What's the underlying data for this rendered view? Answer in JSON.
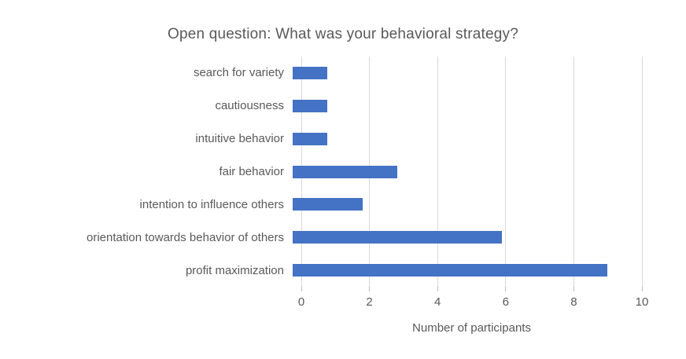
{
  "title": "Open question: What was your behavioral strategy?",
  "x_axis_title": "Number of participants",
  "colors": {
    "bar": "#4472c4",
    "gridline": "#d9d9d9",
    "tick": "#bfbfbf",
    "text": "#595959",
    "background": "#ffffff"
  },
  "chart_data": {
    "type": "bar",
    "orientation": "horizontal",
    "title": "Open question: What was your behavioral strategy?",
    "xlabel": "Number of participants",
    "ylabel": "",
    "categories": [
      "search for variety",
      "cautiousness",
      "intuitive behavior",
      "fair behavior",
      "intention to influence others",
      "orientation towards behavior of others",
      "profit maximization"
    ],
    "values": [
      1,
      1,
      1,
      3,
      2,
      6,
      9
    ],
    "xlim": [
      0,
      10
    ],
    "xticks": [
      0,
      2,
      4,
      6,
      8,
      10
    ],
    "grid": true,
    "legend": false
  }
}
